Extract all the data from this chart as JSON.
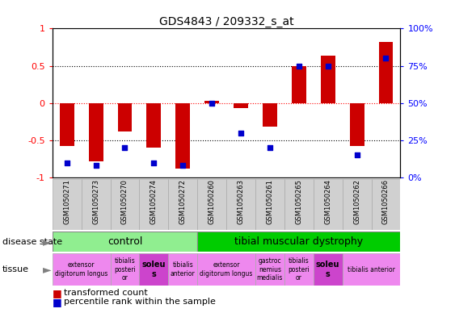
{
  "title": "GDS4843 / 209332_s_at",
  "samples": [
    "GSM1050271",
    "GSM1050273",
    "GSM1050270",
    "GSM1050274",
    "GSM1050272",
    "GSM1050260",
    "GSM1050263",
    "GSM1050261",
    "GSM1050265",
    "GSM1050264",
    "GSM1050262",
    "GSM1050266"
  ],
  "transformed_count": [
    -0.58,
    -0.78,
    -0.38,
    -0.6,
    -0.88,
    0.03,
    -0.07,
    -0.32,
    0.5,
    0.64,
    -0.58,
    0.82
  ],
  "percentile_rank": [
    10,
    8,
    20,
    10,
    8,
    50,
    30,
    20,
    75,
    75,
    15,
    80
  ],
  "bar_color": "#cc0000",
  "dot_color": "#0000cc",
  "control_color": "#90ee90",
  "dystrophy_color": "#00cc00",
  "tissue_color": "#ee88ee",
  "tissue_color_soleus": "#cc44cc",
  "ylim": [
    -1.0,
    1.0
  ],
  "tissue_defs": [
    {
      "sc": 0,
      "ec": 1,
      "label": "extensor\ndigitorum longus",
      "bold": false
    },
    {
      "sc": 2,
      "ec": 2,
      "label": "tibialis\nposteri\nor",
      "bold": false
    },
    {
      "sc": 3,
      "ec": 3,
      "label": "soleu\ns",
      "bold": true
    },
    {
      "sc": 4,
      "ec": 4,
      "label": "tibialis\nanterior",
      "bold": false
    },
    {
      "sc": 5,
      "ec": 6,
      "label": "extensor\ndigitorum longus",
      "bold": false
    },
    {
      "sc": 7,
      "ec": 7,
      "label": "gastroc\nnemius\nmedialis",
      "bold": false
    },
    {
      "sc": 8,
      "ec": 8,
      "label": "tibialis\nposteri\nor",
      "bold": false
    },
    {
      "sc": 9,
      "ec": 9,
      "label": "soleu\ns",
      "bold": true
    },
    {
      "sc": 10,
      "ec": 11,
      "label": "tibialis anterior",
      "bold": false
    }
  ]
}
